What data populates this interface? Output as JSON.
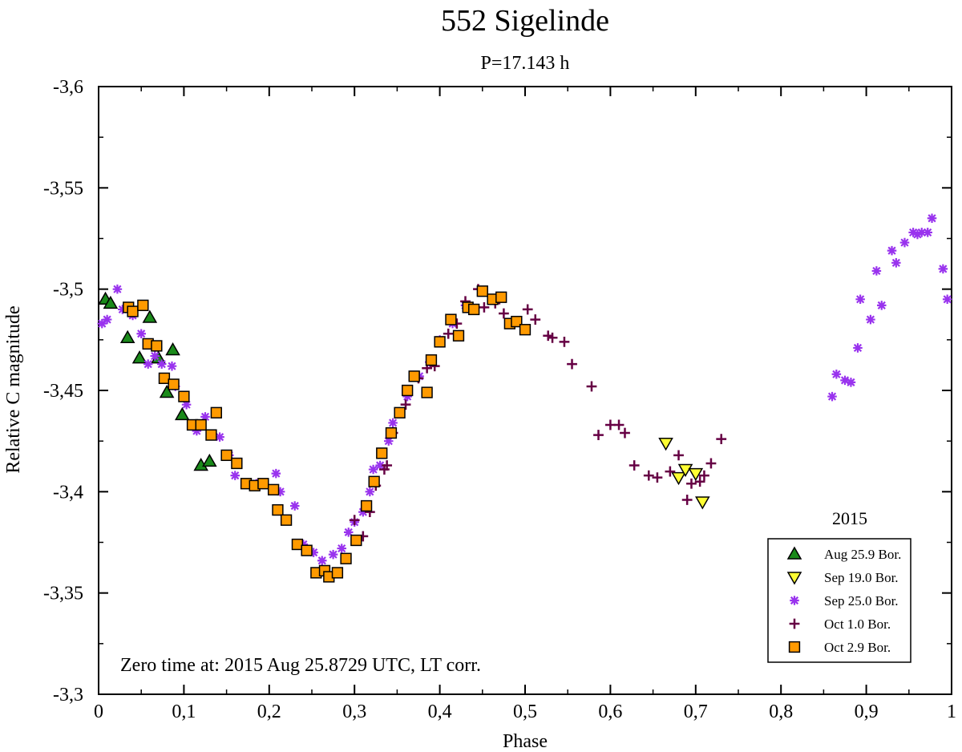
{
  "chart_data": {
    "type": "scatter",
    "title": "552 Sigelinde",
    "subtitle": "P=17.143 h",
    "xlabel": "Phase",
    "ylabel": "Relative C magnitude",
    "xlim": [
      0,
      1
    ],
    "ylim": [
      -3.6,
      -3.3
    ],
    "xticks": [
      {
        "v": 0,
        "label": "0"
      },
      {
        "v": 0.1,
        "label": "0,1"
      },
      {
        "v": 0.2,
        "label": "0,2"
      },
      {
        "v": 0.3,
        "label": "0,3"
      },
      {
        "v": 0.4,
        "label": "0,4"
      },
      {
        "v": 0.5,
        "label": "0,5"
      },
      {
        "v": 0.6,
        "label": "0,6"
      },
      {
        "v": 0.7,
        "label": "0,7"
      },
      {
        "v": 0.8,
        "label": "0,8"
      },
      {
        "v": 0.9,
        "label": "0,9"
      },
      {
        "v": 1,
        "label": "1"
      }
    ],
    "yticks": [
      {
        "v": -3.6,
        "label": "-3,6"
      },
      {
        "v": -3.55,
        "label": "-3,55"
      },
      {
        "v": -3.5,
        "label": "-3,5"
      },
      {
        "v": -3.45,
        "label": "-3,45"
      },
      {
        "v": -3.4,
        "label": "-3,4"
      },
      {
        "v": -3.35,
        "label": "-3,35"
      },
      {
        "v": -3.3,
        "label": "-3,3"
      }
    ],
    "annotation": "Zero time at: 2015 Aug 25.8729 UTC, LT corr.",
    "legend": {
      "title": "2015",
      "position": "bottom-right"
    },
    "series": [
      {
        "name": "Aug 25.9 Bor.",
        "marker": "triangle-up",
        "color": "#1a8a1a",
        "points": [
          [
            0.008,
            -3.495
          ],
          [
            0.014,
            -3.493
          ],
          [
            0.034,
            -3.476
          ],
          [
            0.048,
            -3.466
          ],
          [
            0.06,
            -3.486
          ],
          [
            0.07,
            -3.466
          ],
          [
            0.08,
            -3.449
          ],
          [
            0.087,
            -3.47
          ],
          [
            0.098,
            -3.438
          ],
          [
            0.12,
            -3.413
          ],
          [
            0.13,
            -3.415
          ]
        ]
      },
      {
        "name": "Sep 19.0 Bor.",
        "marker": "triangle-down",
        "color": "#ffff33",
        "points": [
          [
            0.665,
            -3.424
          ],
          [
            0.68,
            -3.407
          ],
          [
            0.688,
            -3.411
          ],
          [
            0.7,
            -3.409
          ],
          [
            0.708,
            -3.395
          ]
        ]
      },
      {
        "name": "Sep 25.0 Bor.",
        "marker": "asterisk",
        "color": "#9933ee",
        "points": [
          [
            0.004,
            -3.483
          ],
          [
            0.01,
            -3.485
          ],
          [
            0.022,
            -3.5
          ],
          [
            0.028,
            -3.49
          ],
          [
            0.04,
            -3.487
          ],
          [
            0.05,
            -3.478
          ],
          [
            0.058,
            -3.463
          ],
          [
            0.066,
            -3.467
          ],
          [
            0.074,
            -3.463
          ],
          [
            0.086,
            -3.462
          ],
          [
            0.09,
            -3.452
          ],
          [
            0.103,
            -3.443
          ],
          [
            0.115,
            -3.43
          ],
          [
            0.125,
            -3.437
          ],
          [
            0.142,
            -3.427
          ],
          [
            0.153,
            -3.418
          ],
          [
            0.16,
            -3.408
          ],
          [
            0.185,
            -3.404
          ],
          [
            0.208,
            -3.409
          ],
          [
            0.213,
            -3.4
          ],
          [
            0.23,
            -3.393
          ],
          [
            0.24,
            -3.374
          ],
          [
            0.252,
            -3.37
          ],
          [
            0.262,
            -3.366
          ],
          [
            0.275,
            -3.369
          ],
          [
            0.285,
            -3.372
          ],
          [
            0.293,
            -3.38
          ],
          [
            0.3,
            -3.385
          ],
          [
            0.31,
            -3.39
          ],
          [
            0.318,
            -3.4
          ],
          [
            0.322,
            -3.411
          ],
          [
            0.33,
            -3.413
          ],
          [
            0.34,
            -3.425
          ],
          [
            0.345,
            -3.434
          ],
          [
            0.362,
            -3.447
          ],
          [
            0.376,
            -3.457
          ],
          [
            0.388,
            -3.464
          ],
          [
            0.4,
            -3.475
          ],
          [
            0.415,
            -3.483
          ],
          [
            0.43,
            -3.492
          ]
        ]
      },
      {
        "name": "Oct 1.0 Bor.",
        "marker": "plus",
        "color": "#660044",
        "points": [
          [
            0.3,
            -3.386
          ],
          [
            0.31,
            -3.378
          ],
          [
            0.318,
            -3.39
          ],
          [
            0.325,
            -3.403
          ],
          [
            0.335,
            -3.411
          ],
          [
            0.338,
            -3.413
          ],
          [
            0.345,
            -3.429
          ],
          [
            0.36,
            -3.443
          ],
          [
            0.375,
            -3.456
          ],
          [
            0.385,
            -3.461
          ],
          [
            0.394,
            -3.462
          ],
          [
            0.41,
            -3.478
          ],
          [
            0.42,
            -3.483
          ],
          [
            0.43,
            -3.494
          ],
          [
            0.445,
            -3.5
          ],
          [
            0.452,
            -3.491
          ],
          [
            0.465,
            -3.493
          ],
          [
            0.475,
            -3.488
          ],
          [
            0.49,
            -3.484
          ],
          [
            0.503,
            -3.49
          ],
          [
            0.512,
            -3.485
          ],
          [
            0.527,
            -3.477
          ],
          [
            0.532,
            -3.476
          ],
          [
            0.546,
            -3.474
          ],
          [
            0.555,
            -3.463
          ],
          [
            0.578,
            -3.452
          ],
          [
            0.586,
            -3.428
          ],
          [
            0.6,
            -3.433
          ],
          [
            0.61,
            -3.433
          ],
          [
            0.617,
            -3.429
          ],
          [
            0.628,
            -3.413
          ],
          [
            0.645,
            -3.408
          ],
          [
            0.655,
            -3.407
          ],
          [
            0.67,
            -3.41
          ],
          [
            0.68,
            -3.418
          ],
          [
            0.69,
            -3.396
          ],
          [
            0.695,
            -3.404
          ],
          [
            0.705,
            -3.405
          ],
          [
            0.71,
            -3.408
          ],
          [
            0.718,
            -3.414
          ],
          [
            0.73,
            -3.426
          ]
        ]
      },
      {
        "name": "Oct 2.9 Bor.",
        "marker": "square",
        "color": "#ff9a00",
        "points": [
          [
            0.035,
            -3.491
          ],
          [
            0.04,
            -3.489
          ],
          [
            0.052,
            -3.492
          ],
          [
            0.058,
            -3.473
          ],
          [
            0.068,
            -3.472
          ],
          [
            0.077,
            -3.456
          ],
          [
            0.088,
            -3.453
          ],
          [
            0.1,
            -3.447
          ],
          [
            0.11,
            -3.433
          ],
          [
            0.12,
            -3.433
          ],
          [
            0.132,
            -3.428
          ],
          [
            0.138,
            -3.439
          ],
          [
            0.15,
            -3.418
          ],
          [
            0.162,
            -3.414
          ],
          [
            0.173,
            -3.404
          ],
          [
            0.183,
            -3.403
          ],
          [
            0.193,
            -3.404
          ],
          [
            0.205,
            -3.401
          ],
          [
            0.21,
            -3.391
          ],
          [
            0.22,
            -3.386
          ],
          [
            0.233,
            -3.374
          ],
          [
            0.244,
            -3.371
          ],
          [
            0.255,
            -3.36
          ],
          [
            0.265,
            -3.361
          ],
          [
            0.27,
            -3.358
          ],
          [
            0.28,
            -3.36
          ],
          [
            0.29,
            -3.367
          ],
          [
            0.302,
            -3.376
          ],
          [
            0.314,
            -3.393
          ],
          [
            0.323,
            -3.405
          ],
          [
            0.332,
            -3.419
          ],
          [
            0.343,
            -3.429
          ],
          [
            0.353,
            -3.439
          ],
          [
            0.362,
            -3.45
          ],
          [
            0.37,
            -3.457
          ],
          [
            0.385,
            -3.449
          ],
          [
            0.39,
            -3.465
          ],
          [
            0.4,
            -3.474
          ],
          [
            0.413,
            -3.485
          ],
          [
            0.422,
            -3.477
          ],
          [
            0.433,
            -3.491
          ],
          [
            0.44,
            -3.49
          ],
          [
            0.45,
            -3.499
          ],
          [
            0.462,
            -3.495
          ],
          [
            0.472,
            -3.496
          ],
          [
            0.482,
            -3.483
          ],
          [
            0.49,
            -3.484
          ],
          [
            0.5,
            -3.48
          ]
        ]
      },
      {
        "name": "Sep 25.0 Bor. (late)",
        "marker": "asterisk",
        "color": "#9933ee",
        "legend": false,
        "points": [
          [
            0.86,
            -3.447
          ],
          [
            0.865,
            -3.458
          ],
          [
            0.875,
            -3.455
          ],
          [
            0.882,
            -3.454
          ],
          [
            0.89,
            -3.471
          ],
          [
            0.893,
            -3.495
          ],
          [
            0.905,
            -3.485
          ],
          [
            0.912,
            -3.509
          ],
          [
            0.918,
            -3.492
          ],
          [
            0.93,
            -3.519
          ],
          [
            0.935,
            -3.513
          ],
          [
            0.945,
            -3.523
          ],
          [
            0.955,
            -3.528
          ],
          [
            0.96,
            -3.527
          ],
          [
            0.965,
            -3.528
          ],
          [
            0.972,
            -3.528
          ],
          [
            0.977,
            -3.535
          ],
          [
            0.99,
            -3.51
          ],
          [
            0.995,
            -3.495
          ]
        ]
      }
    ]
  }
}
